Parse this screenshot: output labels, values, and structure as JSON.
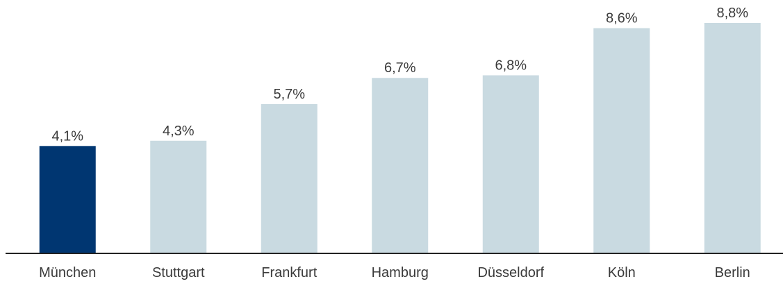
{
  "chart_data": {
    "type": "bar",
    "categories": [
      "München",
      "Stuttgart",
      "Frankfurt",
      "Hamburg",
      "Düsseldorf",
      "Köln",
      "Berlin"
    ],
    "values": [
      4.1,
      4.3,
      5.7,
      6.7,
      6.8,
      8.6,
      8.8
    ],
    "value_labels": [
      "4,1%",
      "4,3%",
      "5,7%",
      "6,7%",
      "6,8%",
      "8,6%",
      "8,8%"
    ],
    "colors": [
      "#003671",
      "#c9dae1",
      "#c9dae1",
      "#c9dae1",
      "#c9dae1",
      "#c9dae1",
      "#c9dae1"
    ],
    "ylim": [
      0,
      8.8
    ]
  }
}
